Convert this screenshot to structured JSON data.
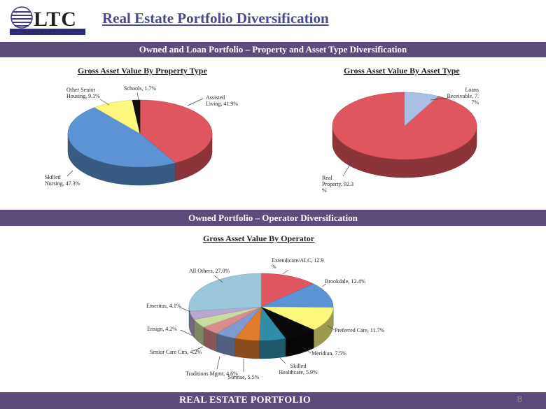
{
  "header": {
    "title": "Real Estate Portfolio Diversification",
    "logo_text": "LTC",
    "logo_subtext": "PROPERTIES, INC."
  },
  "sections": {
    "owned_and_loan": "Owned and Loan Portfolio – Property and Asset Type Diversification",
    "owned": "Owned Portfolio – Operator Diversification"
  },
  "footer": {
    "label": "REAL ESTATE PORTFOLIO",
    "page_number": "8"
  },
  "chart_data": [
    {
      "type": "pie",
      "title": "Gross Asset Value By Property Type",
      "slices": [
        {
          "name": "Assisted Living",
          "value": 41.9,
          "label_lines": [
            "Assisted",
            "Living, 41.9%"
          ],
          "color": "#e0565f"
        },
        {
          "name": "Skilled Nursing",
          "value": 47.3,
          "label_lines": [
            "Skilled",
            "Nursing, 47.3%"
          ],
          "color": "#5b93d4"
        },
        {
          "name": "Other Senior Housing",
          "value": 9.1,
          "label_lines": [
            "Other Senior",
            "Housing, 9.1%"
          ],
          "color": "#fcf87e"
        },
        {
          "name": "Schools",
          "value": 1.7,
          "label_lines": [
            "Schools, 1.7%"
          ],
          "color": "#111111"
        }
      ]
    },
    {
      "type": "pie",
      "title": "Gross Asset Value By Asset Type",
      "slices": [
        {
          "name": "Real Property",
          "value": 92.3,
          "label_lines": [
            "Real",
            "Property, 92.3",
            "%"
          ],
          "color": "#e0565f"
        },
        {
          "name": "Loans Receivable",
          "value": 7.7,
          "label_lines": [
            "Loans",
            "Receivable, 7.",
            "7%"
          ],
          "color": "#a9bfe3"
        }
      ]
    },
    {
      "type": "pie",
      "title": "Gross Asset Value By Operator",
      "slices": [
        {
          "name": "Extendicare/ALC",
          "value": 12.9,
          "label_lines": [
            "Extendicare/ALC, 12.9",
            "%"
          ],
          "color": "#e0565f"
        },
        {
          "name": "Brookdale",
          "value": 12.4,
          "label_lines": [
            "Brookdale, 12.4%"
          ],
          "color": "#5b93d4"
        },
        {
          "name": "Preferred Care",
          "value": 11.7,
          "label_lines": [
            "Preferred Care, 11.7%"
          ],
          "color": "#fcf87e"
        },
        {
          "name": "Meridian",
          "value": 7.5,
          "label_lines": [
            "Meridian, 7.5%"
          ],
          "color": "#0a0a0a"
        },
        {
          "name": "Skilled Healthcare",
          "value": 5.9,
          "label_lines": [
            "Skilled",
            "Healthcare, 5.9%"
          ],
          "color": "#2f8fa9"
        },
        {
          "name": "Sunrise",
          "value": 5.5,
          "label_lines": [
            "Sunrise, 5.5%"
          ],
          "color": "#e07b2c"
        },
        {
          "name": "Traditions Mgmt",
          "value": 4.6,
          "label_lines": [
            "Traditions Mgmt, 4.6%"
          ],
          "color": "#7f9bd1"
        },
        {
          "name": "Senior Care Ctrs",
          "value": 4.2,
          "label_lines": [
            "Senior Care Ctrs, 4.2%"
          ],
          "color": "#d98c8c"
        },
        {
          "name": "Ensign",
          "value": 4.2,
          "label_lines": [
            "Ensign, 4.2%"
          ],
          "color": "#c8dba0"
        },
        {
          "name": "Emeritus",
          "value": 4.1,
          "label_lines": [
            "Emeritus, 4.1%"
          ],
          "color": "#b9a7d3"
        },
        {
          "name": "All Others",
          "value": 27.0,
          "label_lines": [
            "All Others, 27.0%"
          ],
          "color": "#9cc6da"
        }
      ]
    }
  ]
}
